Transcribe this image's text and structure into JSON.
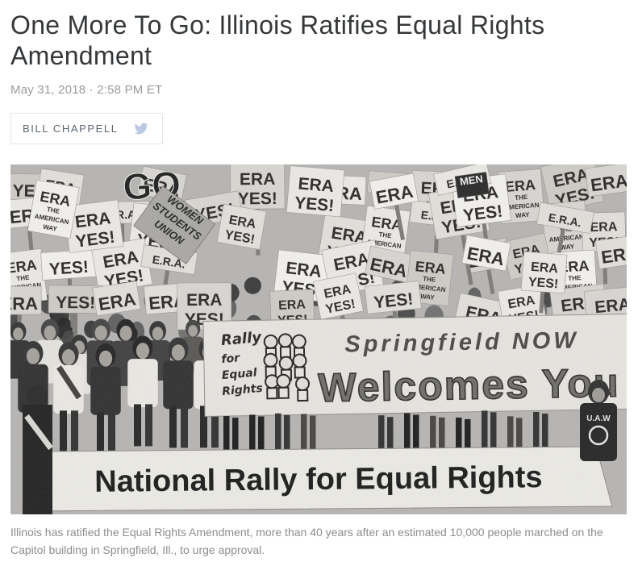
{
  "article": {
    "headline": "One More To Go: Illinois Ratifies Equal Rights Amendment",
    "dateline": "May 31, 2018 · 2:58 PM ET",
    "byline": "BILL CHAPPELL",
    "caption": "Illinois has ratified the Equal Rights Amendment, more than 40 years after an estimated 10,000 people marched on the Capitol building in Springfield, Ill., to urge approval."
  },
  "colors": {
    "headline": "#35383a",
    "dateline": "#9b9b9b",
    "byline": "#5b6670",
    "byline_border": "#e5e5e5",
    "twitter_icon": "#bac9e2",
    "caption": "#8d8d8d",
    "photo_bg": "#b5b4b2",
    "sign_ink": "#262422"
  },
  "photo": {
    "sign_palette": [
      "#f4f3f0",
      "#edebe7",
      "#e3e1dc",
      "#d9d7d2",
      "#cfccc6"
    ],
    "crowd_palette": [
      "#1d1d1d",
      "#2e2e2e",
      "#3f3f3f",
      "#575757",
      "#6a6a6a"
    ],
    "torso_palette": [
      "#d9d7d2",
      "#2c2c2c",
      "#555351",
      "#e6e4df",
      "#3a3a3a"
    ],
    "signs": {
      "variants": [
        [
          [
            "ERA",
            21
          ],
          [
            "YES!",
            21
          ]
        ],
        [
          [
            "ERA",
            21
          ],
          [
            "YES!",
            21
          ]
        ],
        [
          [
            "ERA",
            22
          ]
        ],
        [
          [
            "YES!",
            21
          ]
        ],
        [
          [
            "ERA",
            18
          ],
          [
            "THE",
            8
          ],
          [
            "AMERICAN",
            8
          ],
          [
            "WAY",
            8
          ]
        ],
        [
          [
            "E.R.A.",
            14
          ]
        ],
        [
          [
            "ERA",
            16
          ],
          [
            "YES!",
            16
          ]
        ]
      ]
    },
    "special_signs": [
      {
        "lines": [
          [
            "GO",
            46
          ]
        ]
      },
      {
        "lines": [
          [
            "MEN",
            13
          ]
        ]
      },
      {
        "lines": [
          [
            "WOMEN",
            13
          ],
          [
            "STUDENTS",
            13
          ],
          [
            "UNION",
            13
          ]
        ]
      }
    ],
    "banners": {
      "rally": "Rally for Equal Rights",
      "springfield": "Springfield NOW",
      "welcomes": "Welcomes You",
      "national": "National Rally for Equal Rights",
      "uaw": "U.A.W"
    }
  }
}
